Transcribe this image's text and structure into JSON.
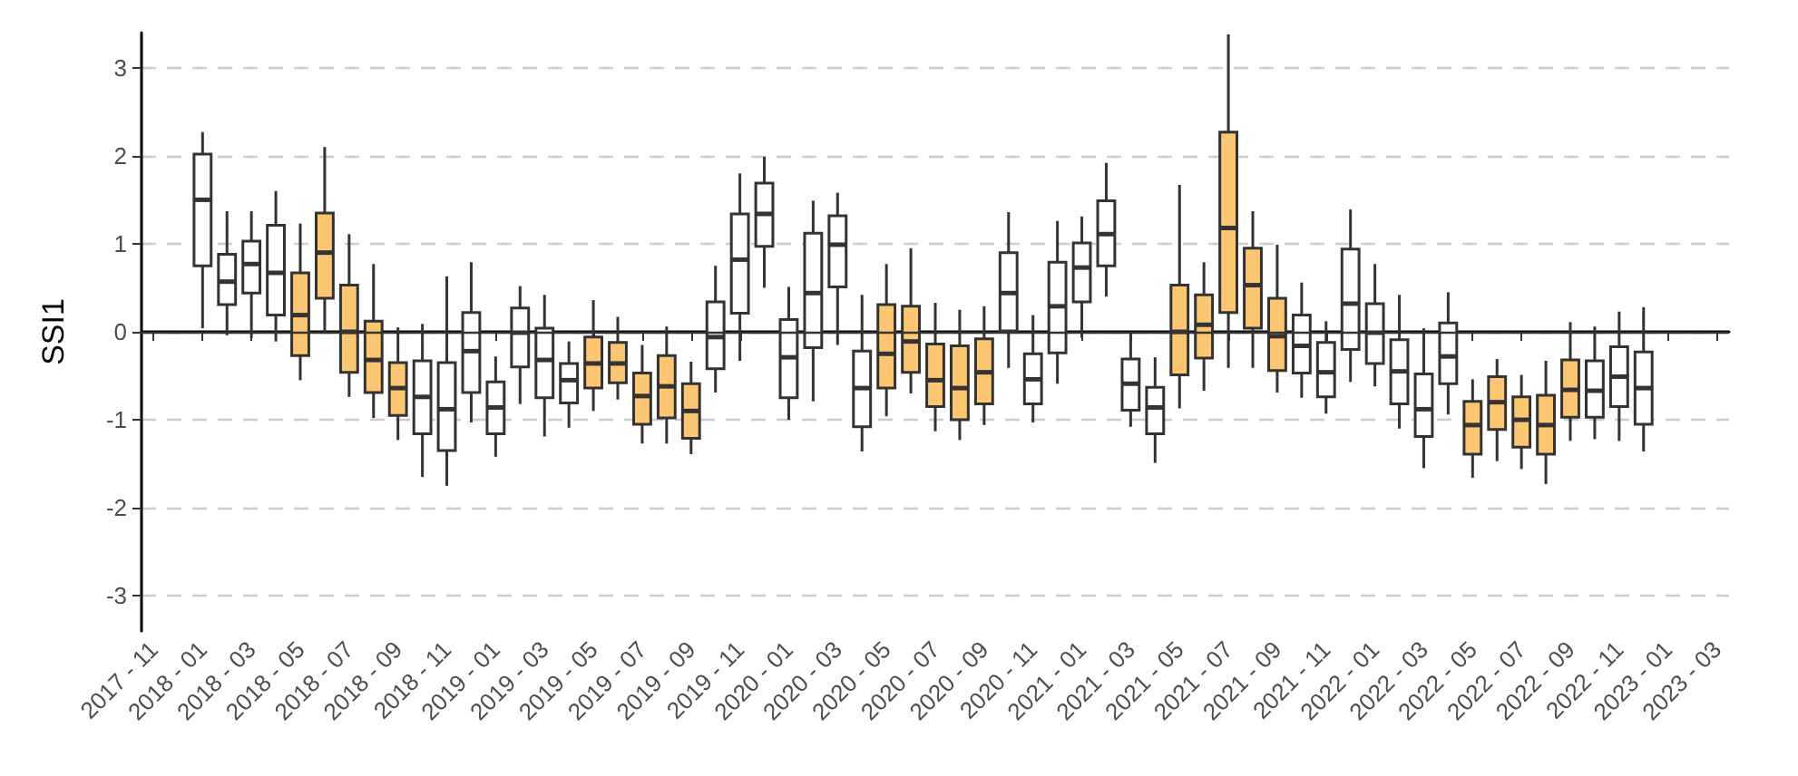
{
  "chart_data": {
    "type": "box",
    "ylabel": "SSI1",
    "categories": [
      "2017 - 11",
      null,
      "2018 - 01",
      null,
      "2018 - 03",
      null,
      "2018 - 05",
      null,
      "2018 - 07",
      null,
      "2018 - 09",
      null,
      "2018 - 11",
      null,
      "2019 - 01",
      null,
      "2019 - 03",
      null,
      "2019 - 05",
      null,
      "2019 - 07",
      null,
      "2019 - 09",
      null,
      "2019 - 11",
      null,
      "2020 - 01",
      null,
      "2020 - 03",
      null,
      "2020 - 05",
      null,
      "2020 - 07",
      null,
      "2020 - 09",
      null,
      "2020 - 11",
      null,
      "2021 - 01",
      null,
      "2021 - 03",
      null,
      "2021 - 05",
      null,
      "2021 - 07",
      null,
      "2021 - 09",
      null,
      "2021 - 11",
      null,
      "2022 - 01",
      null,
      "2022 - 03",
      null,
      "2022 - 05",
      null,
      "2022 - 07",
      null,
      "2022 - 09",
      null,
      "2022 - 11",
      null,
      "2023 - 01",
      null,
      "2023 - 03"
    ],
    "boxes": [
      null,
      null,
      {
        "low": 0.04,
        "q1": 0.75,
        "median": 1.5,
        "q3": 2.02,
        "high": 2.27
      },
      {
        "low": -0.04,
        "q1": 0.31,
        "median": 0.57,
        "q3": 0.88,
        "high": 1.37
      },
      {
        "low": -0.07,
        "q1": 0.44,
        "median": 0.77,
        "q3": 1.03,
        "high": 1.37
      },
      {
        "low": -0.11,
        "q1": 0.19,
        "median": 0.67,
        "q3": 1.21,
        "high": 1.6
      },
      {
        "low": -0.55,
        "q1": -0.27,
        "median": 0.19,
        "q3": 0.67,
        "high": 1.23
      },
      {
        "low": 0.0,
        "q1": 0.38,
        "median": 0.9,
        "q3": 1.35,
        "high": 2.1
      },
      {
        "low": -0.74,
        "q1": -0.46,
        "median": 0.0,
        "q3": 0.53,
        "high": 1.11
      },
      {
        "low": -0.98,
        "q1": -0.69,
        "median": -0.32,
        "q3": 0.12,
        "high": 0.77
      },
      {
        "low": -1.23,
        "q1": -0.95,
        "median": -0.64,
        "q3": -0.35,
        "high": 0.05
      },
      {
        "low": -1.65,
        "q1": -1.16,
        "median": -0.74,
        "q3": -0.33,
        "high": 0.09
      },
      {
        "low": -1.75,
        "q1": -1.35,
        "median": -0.88,
        "q3": -0.35,
        "high": 0.63
      },
      {
        "low": -1.03,
        "q1": -0.69,
        "median": -0.22,
        "q3": 0.22,
        "high": 0.79
      },
      {
        "low": -1.42,
        "q1": -1.16,
        "median": -0.86,
        "q3": -0.57,
        "high": -0.28
      },
      {
        "low": -0.82,
        "q1": -0.4,
        "median": -0.01,
        "q3": 0.27,
        "high": 0.52
      },
      {
        "low": -1.19,
        "q1": -0.75,
        "median": -0.32,
        "q3": 0.04,
        "high": 0.42
      },
      {
        "low": -1.09,
        "q1": -0.81,
        "median": -0.55,
        "q3": -0.36,
        "high": -0.11
      },
      {
        "low": -0.9,
        "q1": -0.64,
        "median": -0.36,
        "q3": -0.06,
        "high": 0.36
      },
      {
        "low": -0.77,
        "q1": -0.58,
        "median": -0.36,
        "q3": -0.12,
        "high": 0.17
      },
      {
        "low": -1.27,
        "q1": -1.05,
        "median": -0.73,
        "q3": -0.47,
        "high": -0.15
      },
      {
        "low": -1.27,
        "q1": -0.98,
        "median": -0.62,
        "q3": -0.27,
        "high": 0.06
      },
      {
        "low": -1.39,
        "q1": -1.21,
        "median": -0.9,
        "q3": -0.59,
        "high": -0.34
      },
      {
        "low": -0.69,
        "q1": -0.42,
        "median": -0.06,
        "q3": 0.34,
        "high": 0.75
      },
      {
        "low": -0.33,
        "q1": 0.21,
        "median": 0.82,
        "q3": 1.34,
        "high": 1.8
      },
      {
        "low": 0.5,
        "q1": 0.97,
        "median": 1.34,
        "q3": 1.69,
        "high": 1.99
      },
      {
        "low": -1.0,
        "q1": -0.75,
        "median": -0.29,
        "q3": 0.14,
        "high": 0.51
      },
      {
        "low": -0.79,
        "q1": -0.18,
        "median": 0.44,
        "q3": 1.12,
        "high": 1.49
      },
      {
        "low": -0.15,
        "q1": 0.51,
        "median": 0.99,
        "q3": 1.32,
        "high": 1.58
      },
      {
        "low": -1.36,
        "q1": -1.08,
        "median": -0.64,
        "q3": -0.22,
        "high": 0.42
      },
      {
        "low": -0.96,
        "q1": -0.64,
        "median": -0.25,
        "q3": 0.31,
        "high": 0.77
      },
      {
        "low": -0.7,
        "q1": -0.46,
        "median": -0.11,
        "q3": 0.29,
        "high": 0.95
      },
      {
        "low": -1.13,
        "q1": -0.85,
        "median": -0.55,
        "q3": -0.14,
        "high": 0.33
      },
      {
        "low": -1.23,
        "q1": -1.0,
        "median": -0.64,
        "q3": -0.16,
        "high": 0.25
      },
      {
        "low": -1.06,
        "q1": -0.82,
        "median": -0.46,
        "q3": -0.08,
        "high": 0.29
      },
      {
        "low": -0.41,
        "q1": 0.01,
        "median": 0.44,
        "q3": 0.9,
        "high": 1.36
      },
      {
        "low": -1.03,
        "q1": -0.82,
        "median": -0.54,
        "q3": -0.25,
        "high": 0.19
      },
      {
        "low": -0.59,
        "q1": -0.24,
        "median": 0.29,
        "q3": 0.79,
        "high": 1.26
      },
      {
        "low": -0.07,
        "q1": 0.34,
        "median": 0.73,
        "q3": 1.01,
        "high": 1.31
      },
      {
        "low": 0.4,
        "q1": 0.75,
        "median": 1.11,
        "q3": 1.49,
        "high": 1.92
      },
      {
        "low": -1.08,
        "q1": -0.89,
        "median": -0.59,
        "q3": -0.31,
        "high": -0.01
      },
      {
        "low": -1.49,
        "q1": -1.16,
        "median": -0.86,
        "q3": -0.63,
        "high": -0.29
      },
      {
        "low": -0.87,
        "q1": -0.49,
        "median": 0.0,
        "q3": 0.53,
        "high": 1.67
      },
      {
        "low": -0.67,
        "q1": -0.3,
        "median": 0.08,
        "q3": 0.42,
        "high": 0.79
      },
      {
        "low": -0.41,
        "q1": 0.22,
        "median": 1.18,
        "q3": 2.27,
        "high": 3.38
      },
      {
        "low": -0.41,
        "q1": 0.04,
        "median": 0.53,
        "q3": 0.95,
        "high": 1.37
      },
      {
        "low": -0.69,
        "q1": -0.44,
        "median": -0.05,
        "q3": 0.38,
        "high": 0.99
      },
      {
        "low": -0.75,
        "q1": -0.47,
        "median": -0.16,
        "q3": 0.19,
        "high": 0.56
      },
      {
        "low": -0.93,
        "q1": -0.74,
        "median": -0.46,
        "q3": -0.12,
        "high": 0.12
      },
      {
        "low": -0.57,
        "q1": -0.2,
        "median": 0.32,
        "q3": 0.94,
        "high": 1.39
      },
      {
        "low": -0.62,
        "q1": -0.36,
        "median": -0.01,
        "q3": 0.32,
        "high": 0.77
      },
      {
        "low": -1.1,
        "q1": -0.82,
        "median": -0.45,
        "q3": -0.09,
        "high": 0.42
      },
      {
        "low": -1.55,
        "q1": -1.19,
        "median": -0.88,
        "q3": -0.48,
        "high": 0.04
      },
      {
        "low": -0.94,
        "q1": -0.59,
        "median": -0.28,
        "q3": 0.1,
        "high": 0.45
      },
      {
        "low": -1.66,
        "q1": -1.39,
        "median": -1.06,
        "q3": -0.79,
        "high": -0.54
      },
      {
        "low": -1.47,
        "q1": -1.11,
        "median": -0.8,
        "q3": -0.51,
        "high": -0.31
      },
      {
        "low": -1.56,
        "q1": -1.31,
        "median": -1.0,
        "q3": -0.74,
        "high": -0.49
      },
      {
        "low": -1.73,
        "q1": -1.39,
        "median": -1.06,
        "q3": -0.72,
        "high": -0.33
      },
      {
        "low": -1.24,
        "q1": -0.97,
        "median": -0.66,
        "q3": -0.32,
        "high": 0.11
      },
      {
        "low": -1.22,
        "q1": -0.97,
        "median": -0.67,
        "q3": -0.33,
        "high": 0.06
      },
      {
        "low": -1.24,
        "q1": -0.85,
        "median": -0.51,
        "q3": -0.17,
        "high": 0.23
      },
      {
        "low": -1.36,
        "q1": -1.05,
        "median": -0.64,
        "q3": -0.23,
        "high": 0.28
      },
      null,
      null,
      null
    ],
    "colors": [
      null,
      null,
      "#ffffff",
      "#ffffff",
      "#ffffff",
      "#ffffff",
      "#fdc672",
      "#fdc672",
      "#fdc672",
      "#fdc672",
      "#fdc672",
      "#ffffff",
      "#ffffff",
      "#ffffff",
      "#ffffff",
      "#ffffff",
      "#ffffff",
      "#ffffff",
      "#fdc672",
      "#fdc672",
      "#fdc672",
      "#fdc672",
      "#fdc672",
      "#ffffff",
      "#ffffff",
      "#ffffff",
      "#ffffff",
      "#ffffff",
      "#ffffff",
      "#ffffff",
      "#fdc672",
      "#fdc672",
      "#fdc672",
      "#fdc672",
      "#fdc672",
      "#ffffff",
      "#ffffff",
      "#ffffff",
      "#ffffff",
      "#ffffff",
      "#ffffff",
      "#ffffff",
      "#fdc672",
      "#fdc672",
      "#fdc672",
      "#fdc672",
      "#fdc672",
      "#ffffff",
      "#ffffff",
      "#ffffff",
      "#ffffff",
      "#ffffff",
      "#ffffff",
      "#ffffff",
      "#fdc672",
      "#fdc672",
      "#fdc672",
      "#fdc672",
      "#fdc672",
      "#ffffff",
      "#ffffff",
      "#ffffff",
      null,
      null,
      null
    ],
    "ylim": [
      -3.4,
      3.4
    ],
    "yticks": [
      -3,
      -2,
      -1,
      0,
      1,
      2,
      3
    ],
    "grid": "y",
    "ref_lines": [
      {
        "axis": "y",
        "value": 0,
        "color": "#333333",
        "line_style": "solid"
      }
    ]
  }
}
